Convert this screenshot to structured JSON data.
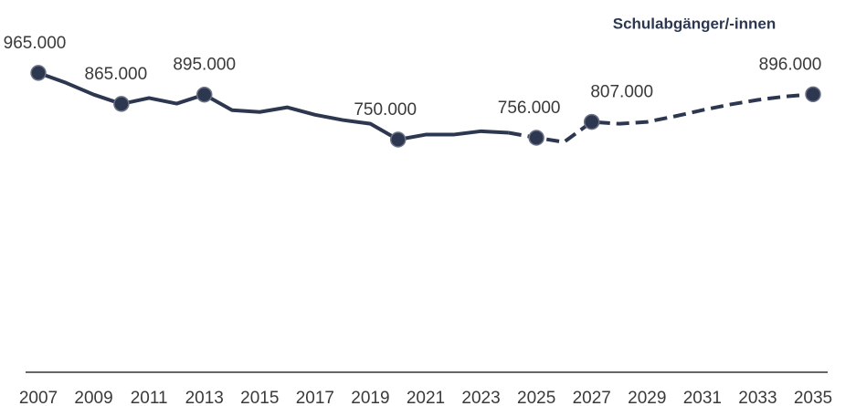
{
  "chart_data": {
    "type": "line",
    "series": [
      {
        "name": "Schulabgänger/-innen",
        "color": "#2d3850",
        "values": [
          965000,
          933000,
          895000,
          865000,
          884000,
          866000,
          895000,
          845000,
          839000,
          854000,
          830000,
          813000,
          801000,
          750000,
          766000,
          766000,
          777000,
          772000,
          756000,
          742000,
          807000,
          801000,
          807000,
          825000,
          845000,
          863000,
          878000,
          889000,
          896000
        ],
        "value_labels": [
          "965.000",
          null,
          null,
          "865.000",
          null,
          null,
          "895.000",
          null,
          null,
          null,
          null,
          null,
          null,
          "750.000",
          null,
          null,
          null,
          null,
          "756.000",
          null,
          "807.000",
          null,
          null,
          null,
          null,
          null,
          null,
          null,
          "896.000"
        ],
        "dashed_from_index": 17
      }
    ],
    "x": [
      2007,
      2008,
      2009,
      2010,
      2011,
      2012,
      2013,
      2014,
      2015,
      2016,
      2017,
      2018,
      2019,
      2020,
      2021,
      2022,
      2023,
      2024,
      2025,
      2026,
      2027,
      2028,
      2029,
      2030,
      2031,
      2032,
      2033,
      2034,
      2035
    ],
    "xlim": [
      2007,
      2035
    ],
    "xticks": [
      2007,
      2009,
      2011,
      2013,
      2015,
      2017,
      2019,
      2021,
      2023,
      2025,
      2027,
      2029,
      2031,
      2033,
      2035
    ],
    "ylim": [
      0,
      1000000
    ]
  }
}
